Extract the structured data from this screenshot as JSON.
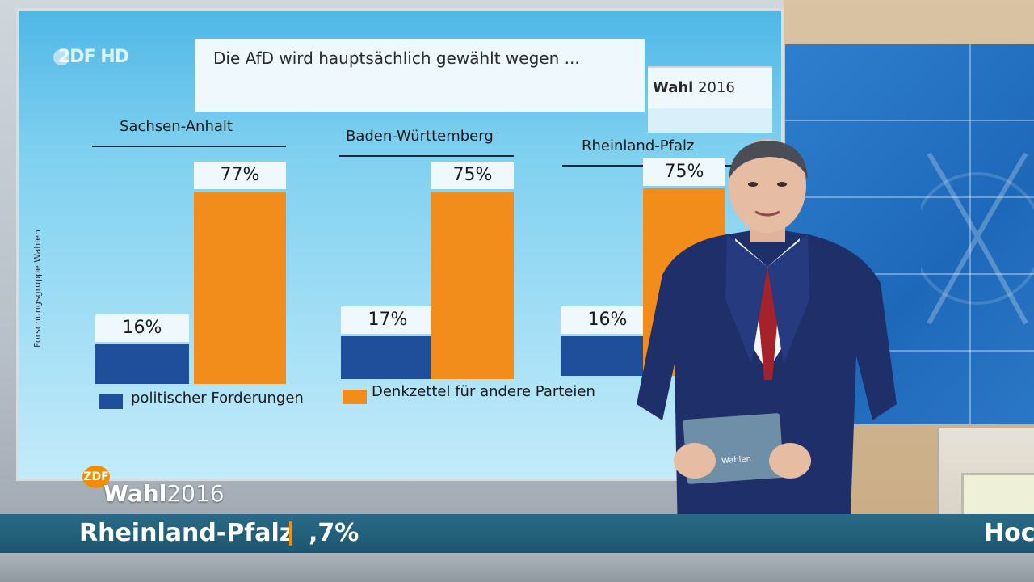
{
  "broadcast": {
    "logo_text": "2DF HD",
    "lower_third": {
      "brand": "ZDF",
      "label": "Wahl",
      "year": "2016"
    },
    "ticker": {
      "text": "Rheinland-Pfalz",
      "value": ",7%",
      "right_text": "Hoc"
    }
  },
  "chart_data": {
    "type": "bar",
    "title": "Die AfD wird hauptsächlich gewählt wegen ...",
    "badge": {
      "label": "Wahl",
      "year": "2016"
    },
    "source": "Forschungsgruppe Wahlen",
    "categories": [
      "Sachsen-Anhalt",
      "Baden-Württemberg",
      "Rheinland-Pfalz"
    ],
    "series": [
      {
        "name": "politischer Forderungen",
        "color": "#1f4f9a",
        "values": [
          16,
          17,
          16
        ],
        "labels": [
          "16%",
          "17%",
          "16%"
        ]
      },
      {
        "name": "Denkzettel für andere Parteien",
        "color": "#f28c1a",
        "values": [
          77,
          75,
          75
        ],
        "labels": [
          "77%",
          "75%",
          "75%"
        ]
      }
    ],
    "ylim": [
      0,
      80
    ],
    "legend": "bottom"
  },
  "colors": {
    "series_blue": "#1f4f9a",
    "series_orange": "#f28c1a",
    "accent": "#f28c00",
    "ticker_bg": "#1b566f"
  }
}
